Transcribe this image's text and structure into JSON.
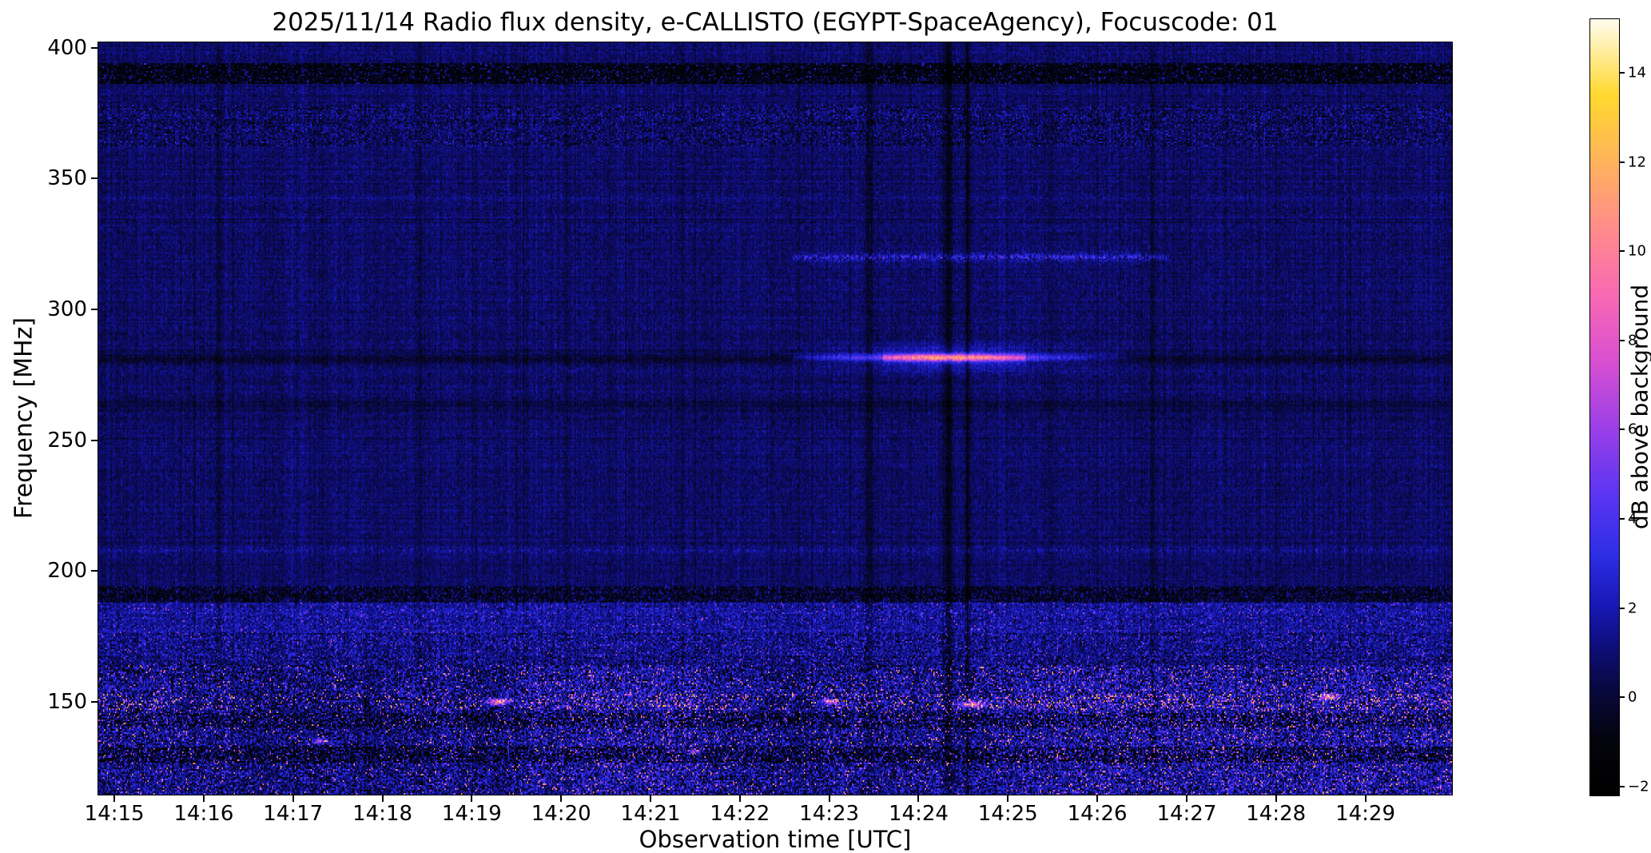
{
  "figure": {
    "title": "2025/11/14  Radio flux density, e-CALLISTO (EGYPT-SpaceAgency), Focuscode: 01",
    "xlabel": "Observation time [UTC]",
    "ylabel": "Frequency [MHz]",
    "colorbar_label": "dB above background"
  },
  "chart_data": {
    "type": "heatmap",
    "title": "2025/11/14  Radio flux density, e-CALLISTO (EGYPT-SpaceAgency), Focuscode: 01",
    "date": "2025/11/14",
    "station": "EGYPT-SpaceAgency",
    "focuscode": "01",
    "xlabel": "Observation time [UTC]",
    "ylabel": "Frequency [MHz]",
    "colorbar_label": "dB above background",
    "t_range": [
      14.82,
      29.97
    ],
    "y_range": [
      114.5,
      402
    ],
    "color_range": [
      -2.2,
      15.2
    ],
    "x_ticks": [
      {
        "minute": 15,
        "label": "14:15"
      },
      {
        "minute": 16,
        "label": "14:16"
      },
      {
        "minute": 17,
        "label": "14:17"
      },
      {
        "minute": 18,
        "label": "14:18"
      },
      {
        "minute": 19,
        "label": "14:19"
      },
      {
        "minute": 20,
        "label": "14:20"
      },
      {
        "minute": 21,
        "label": "14:21"
      },
      {
        "minute": 22,
        "label": "14:22"
      },
      {
        "minute": 23,
        "label": "14:23"
      },
      {
        "minute": 24,
        "label": "14:24"
      },
      {
        "minute": 25,
        "label": "14:25"
      },
      {
        "minute": 26,
        "label": "14:26"
      },
      {
        "minute": 27,
        "label": "14:27"
      },
      {
        "minute": 28,
        "label": "14:28"
      },
      {
        "minute": 29,
        "label": "14:29"
      }
    ],
    "y_ticks": [
      400,
      350,
      300,
      250,
      200,
      150
    ],
    "colorbar_ticks": [
      {
        "value": 14,
        "label": "14"
      },
      {
        "value": 12,
        "label": "12"
      },
      {
        "value": 10,
        "label": "10"
      },
      {
        "value": 8,
        "label": "8"
      },
      {
        "value": 6,
        "label": "6"
      },
      {
        "value": 4,
        "label": "4"
      },
      {
        "value": 2,
        "label": "2"
      },
      {
        "value": 0,
        "label": "0"
      },
      {
        "value": -2,
        "label": "−2"
      }
    ],
    "colormap_stops": [
      [
        -2.2,
        "#000000"
      ],
      [
        -1.0,
        "#04040c"
      ],
      [
        0.0,
        "#070736"
      ],
      [
        1.0,
        "#0d0d72"
      ],
      [
        2.0,
        "#1717b4"
      ],
      [
        3.2,
        "#2e2ee6"
      ],
      [
        4.5,
        "#5a35f2"
      ],
      [
        6.0,
        "#9a3fe8"
      ],
      [
        7.5,
        "#d84fd2"
      ],
      [
        9.0,
        "#f969b4"
      ],
      [
        10.5,
        "#ff8c8c"
      ],
      [
        12.0,
        "#ffb35c"
      ],
      [
        13.5,
        "#ffd92e"
      ],
      [
        15.2,
        "#fffdf0"
      ]
    ],
    "background": {
      "mean": 0.75,
      "sigma": 0.45,
      "col_sigma": 0.2,
      "row_sigma": 0.12,
      "dark_col_prob": 0.02,
      "bright_col_prob": 0.02
    },
    "features": [
      {
        "type": "dark_band",
        "f0": 386,
        "f1": 394,
        "strength": 2.0,
        "black_prob": 0.38,
        "bright_prob": 0.08,
        "bright_add": 2.4
      },
      {
        "type": "speckle_band",
        "f0": 362,
        "f1": 378,
        "sigma": 0.5,
        "dark_prob": 0.15,
        "dark_sub": 1.6,
        "bright_prob": 0.08,
        "bright_add": 1.3
      },
      {
        "type": "dark_line",
        "f": 281,
        "width": 1.6,
        "strength": 1.1
      },
      {
        "type": "emission_line",
        "f": 281.5,
        "core_width": 1.3,
        "halo_width": 4.5,
        "halo_frac": 0.25,
        "peak_db": 9.5,
        "t_start": 22.6,
        "t_rise": 23.6,
        "t_peak": 24.35,
        "t_fall": 25.2,
        "t_end": 26.5
      },
      {
        "type": "spotty_line",
        "f": 320,
        "width": 1.1,
        "t0": 22.6,
        "t1": 26.8,
        "add": 2.4,
        "prob": 0.6
      },
      {
        "type": "spotty_line",
        "f": 320,
        "width": 4.0,
        "t0": 22.8,
        "t1": 26.5,
        "add": 0.8,
        "prob": 0.4
      },
      {
        "type": "dark_line",
        "f": 263,
        "width": 2.6,
        "strength": 0.7
      },
      {
        "type": "spotty_line",
        "f": 208,
        "width": 1.0,
        "t0": 14.8,
        "t1": 30,
        "add": 1.1,
        "prob": 0.5
      },
      {
        "type": "dark_band",
        "f0": 188,
        "f1": 194,
        "strength": 1.3,
        "black_prob": 0.3,
        "bright_prob": 0.12,
        "bright_add": 1.8
      },
      {
        "type": "active_band",
        "f0": 176,
        "f1": 188,
        "boost": 1.2,
        "sigma": 0.6,
        "spike_prob": 0.03,
        "spike_add": 2.6,
        "dark_prob": 0.05,
        "dark_sub": 1.5
      },
      {
        "type": "active_band",
        "f0": 164,
        "f1": 176,
        "boost": 0.7,
        "sigma": 0.8,
        "spike_prob": 0.05,
        "spike_add": 2.2,
        "dark_prob": 0.08,
        "dark_sub": 1.6
      },
      {
        "type": "burst_band",
        "f0": 114.5,
        "f1": 164,
        "boost": 0.9,
        "sigma": 1.25,
        "spike_prob": 0.045,
        "spike_base": 3.5,
        "spike_range": 8.5,
        "black_prob": 0.1
      },
      {
        "type": "burst_band",
        "f0": 147,
        "f1": 153,
        "boost": 0.3,
        "sigma": 0.4,
        "spike_prob": 0.06,
        "spike_base": 5.0,
        "spike_range": 8.0,
        "black_prob": 0.05
      },
      {
        "type": "dark_band",
        "f0": 140,
        "f1": 146,
        "strength": 0.8,
        "black_prob": 0.22,
        "bright_prob": 0.06,
        "bright_add": 3.0
      },
      {
        "type": "dark_band",
        "f0": 127,
        "f1": 133,
        "strength": 0.9,
        "black_prob": 0.25,
        "bright_prob": 0.05,
        "bright_add": 3.0
      },
      {
        "type": "spot",
        "f": 150,
        "t": 19.3,
        "df": 1.2,
        "dt": 0.12,
        "add": 9.0
      },
      {
        "type": "spot",
        "f": 150,
        "t": 23.0,
        "df": 1.0,
        "dt": 0.1,
        "add": 7.0
      },
      {
        "type": "spot",
        "f": 149,
        "t": 24.6,
        "df": 1.2,
        "dt": 0.15,
        "add": 8.0
      },
      {
        "type": "spot",
        "f": 135,
        "t": 17.3,
        "df": 1.0,
        "dt": 0.08,
        "add": 6.0
      },
      {
        "type": "spot",
        "f": 152,
        "t": 28.6,
        "df": 1.0,
        "dt": 0.1,
        "add": 7.0
      },
      {
        "type": "spot",
        "f": 131,
        "t": 21.5,
        "df": 1.0,
        "dt": 0.08,
        "add": 6.0
      },
      {
        "type": "vline",
        "t": 16.17,
        "strength": 1.0,
        "width_min": 0.035
      },
      {
        "type": "vline",
        "t": 18.42,
        "strength": 0.7,
        "width_min": 0.03
      },
      {
        "type": "vline",
        "t": 20.05,
        "strength": 0.5,
        "width_min": 0.03
      },
      {
        "type": "vline",
        "t": 21.35,
        "strength": 0.5,
        "width_min": 0.025
      },
      {
        "type": "vline",
        "t": 23.45,
        "strength": 1.5,
        "width_min": 0.045
      },
      {
        "type": "vline",
        "t": 24.33,
        "strength": 1.8,
        "width_min": 0.055
      },
      {
        "type": "vline",
        "t": 24.55,
        "strength": 1.3,
        "width_min": 0.035
      },
      {
        "type": "vline",
        "t": 26.62,
        "strength": 0.8,
        "width_min": 0.03
      }
    ]
  }
}
